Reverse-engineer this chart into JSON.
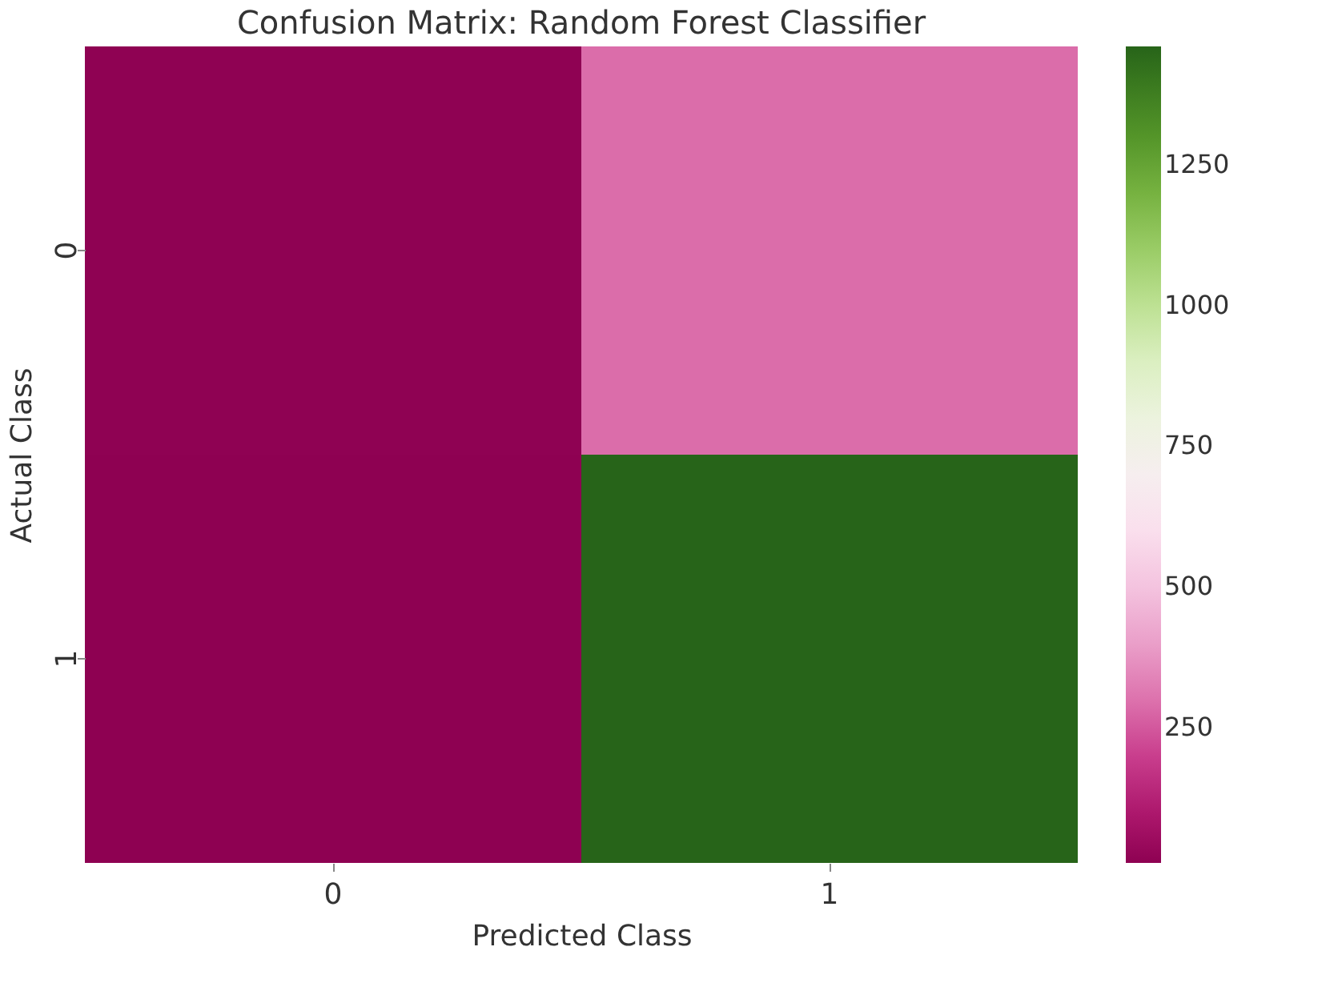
{
  "chart_data": {
    "type": "heatmap",
    "title": "Confusion Matrix: Random Forest Classifier",
    "xlabel": "Predicted Class",
    "ylabel": "Actual Class",
    "categories": [
      "0",
      "1"
    ],
    "y_categories": [
      "0",
      "1"
    ],
    "cells": [
      [
        12,
        290
      ],
      [
        10,
        1460
      ]
    ],
    "clim": [
      10,
      1460
    ],
    "cticks": [
      250,
      500,
      750,
      1000,
      1250
    ]
  }
}
